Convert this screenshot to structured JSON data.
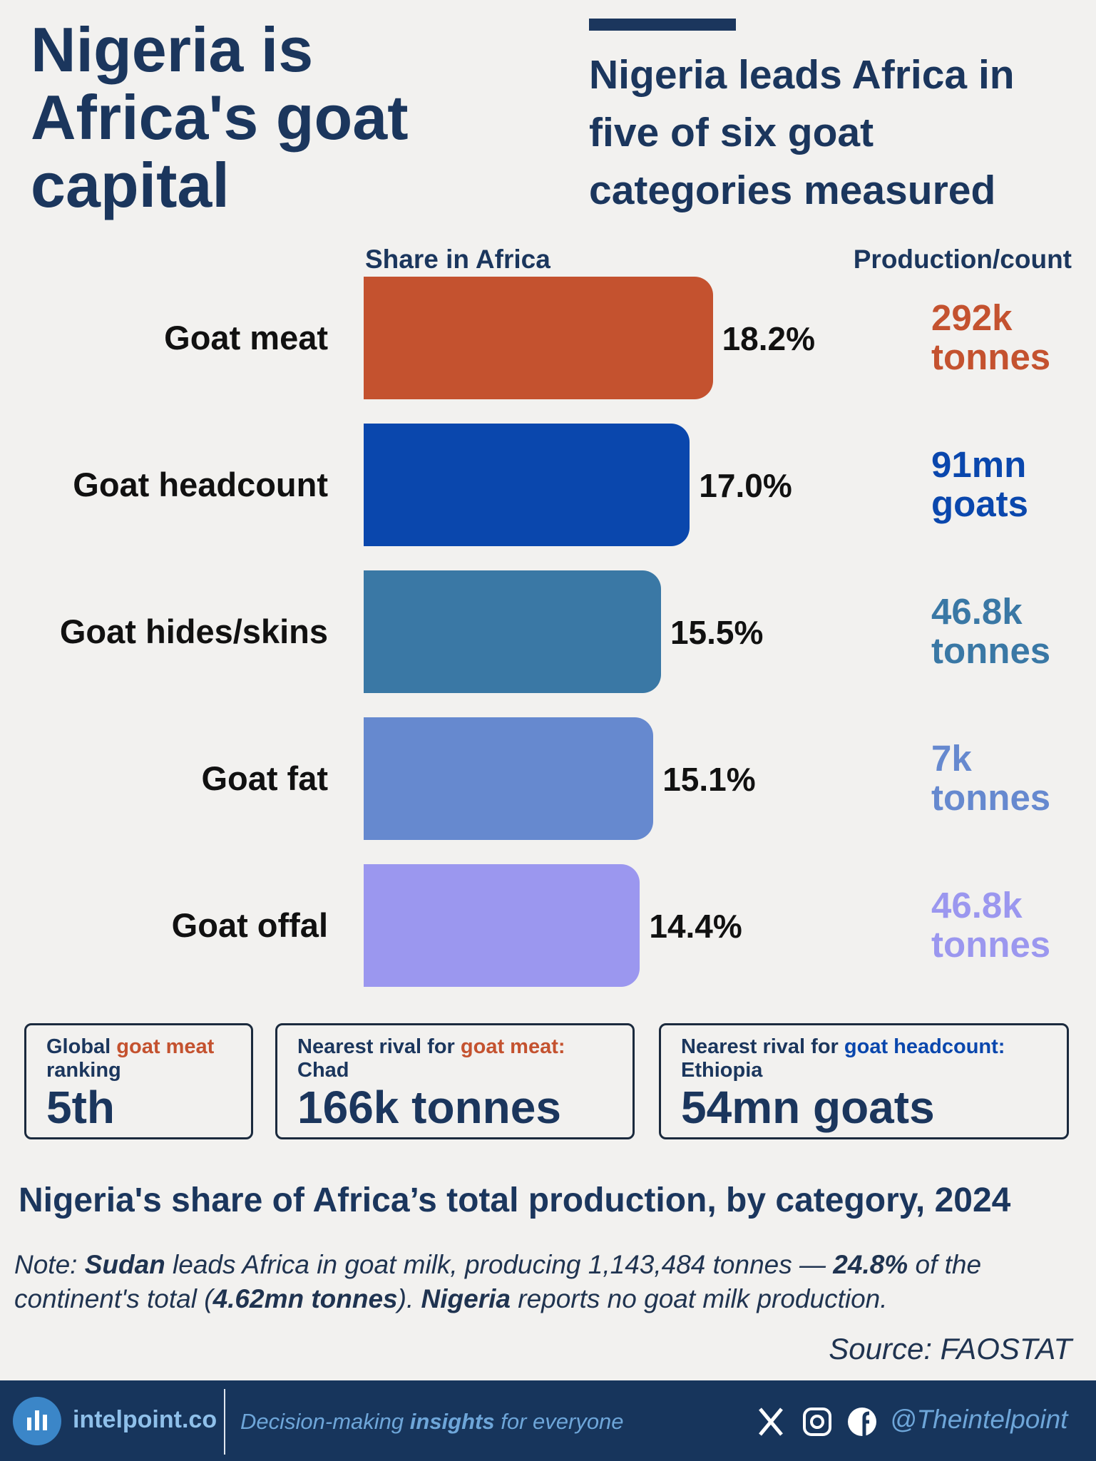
{
  "headline": "Nigeria is Africa's goat capital",
  "subheadline": "Nigeria leads Africa in five of six goat categories measured",
  "chart_data": {
    "type": "bar",
    "title": "Nigeria's share of Africa’s total production, by category, 2024",
    "value_header": "Share in Africa",
    "production_header": "Production/count",
    "categories": [
      "Goat meat",
      "Goat headcount",
      "Goat hides/skins",
      "Goat fat",
      "Goat offal"
    ],
    "values": [
      18.2,
      17.0,
      15.5,
      15.1,
      14.4
    ],
    "value_labels": [
      "18.2%",
      "17.0%",
      "15.5%",
      "15.1%",
      "14.4%"
    ],
    "production_labels": [
      "292k tonnes",
      "91mn goats",
      "46.8k tonnes",
      "7k tonnes",
      "46.8k tonnes"
    ],
    "colors": [
      "#c4522f",
      "#0a47ad",
      "#3a78a5",
      "#6689cf",
      "#9b97ef"
    ]
  },
  "stats": [
    {
      "label_parts": [
        "Global",
        "goat meat",
        "ranking"
      ],
      "value": "5th",
      "accent": "#c4522f"
    },
    {
      "label_parts": [
        "Nearest rival for",
        "goat meat:",
        "Chad"
      ],
      "value": "166k tonnes",
      "accent": "#c4522f"
    },
    {
      "label_parts": [
        "Nearest rival for",
        "goat headcount:",
        "Ethiopia"
      ],
      "value": "54mn goats",
      "accent": "#0a47ad"
    }
  ],
  "note_parts": [
    "Note: ",
    "Sudan",
    " leads Africa in goat milk, producing 1,143,484 tonnes — ",
    "24.8%",
    " of the continent's total (",
    "4.62mn tonnes",
    "). ",
    "Nigeria",
    " reports no goat milk production."
  ],
  "source": "Source: FAOSTAT",
  "footer": {
    "site": "intelpoint.co",
    "tagline_parts": [
      "Decision-making ",
      "insights",
      " for everyone"
    ],
    "handle": "@Theintelpoint"
  }
}
